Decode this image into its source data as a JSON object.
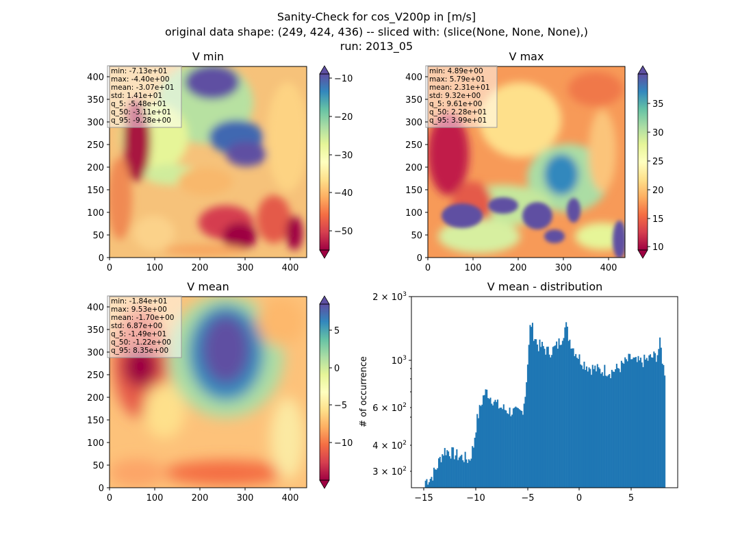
{
  "title_lines": [
    "Sanity-Check for cos_V200p in [m/s]",
    "original data shape: (249, 424, 436) -- sliced with: (slice(None, None, None),)",
    "run: 2013_05"
  ],
  "panels": [
    {
      "title": "V min",
      "stats": [
        "min: -7.13e+01",
        "max: -4.40e+00",
        "mean: -3.07e+01",
        "std: 1.41e+01",
        "q_5: -5.48e+01",
        "q_50: -3.11e+01",
        "q_95: -9.28e+00"
      ],
      "colorbar_ticks": [
        "−10",
        "−20",
        "−30",
        "−40",
        "−50"
      ],
      "colorbar_range": [
        -55,
        -9
      ],
      "extend": "both"
    },
    {
      "title": "V max",
      "stats": [
        "min: 4.89e+00",
        "max: 5.79e+01",
        "mean: 2.31e+01",
        "std: 9.32e+00",
        "q_5: 9.61e+00",
        "q_50: 2.28e+01",
        "q_95: 3.99e+01"
      ],
      "colorbar_ticks": [
        "35",
        "30",
        "25",
        "20",
        "15",
        "10"
      ],
      "colorbar_range": [
        9,
        40
      ],
      "extend": "both"
    },
    {
      "title": "V mean",
      "stats": [
        "min: -1.84e+01",
        "max: 9.53e+00",
        "mean: -1.70e+00",
        "std: 6.87e+00",
        "q_5: -1.49e+01",
        "q_50: -1.22e+00",
        "q_95: 8.35e+00"
      ],
      "colorbar_ticks": [
        "5",
        "0",
        "−5",
        "−10"
      ],
      "colorbar_range": [
        -15,
        8.5
      ],
      "extend": "both"
    }
  ],
  "map_axes": {
    "x_ticks": [
      "0",
      "100",
      "200",
      "300",
      "400"
    ],
    "y_ticks": [
      "0",
      "50",
      "100",
      "150",
      "200",
      "250",
      "300",
      "350",
      "400"
    ],
    "x_range": [
      0,
      436
    ],
    "y_range": [
      0,
      424
    ]
  },
  "colormap": "Spectral",
  "chart_data": [
    {
      "type": "heatmap",
      "title": "V min",
      "x_range": [
        0,
        436
      ],
      "y_range": [
        0,
        424
      ],
      "colorbar_range": [
        -55,
        -9
      ],
      "colormap": "Spectral"
    },
    {
      "type": "heatmap",
      "title": "V max",
      "x_range": [
        0,
        436
      ],
      "y_range": [
        0,
        424
      ],
      "colorbar_range": [
        9,
        40
      ],
      "colormap": "Spectral"
    },
    {
      "type": "heatmap",
      "title": "V mean",
      "x_range": [
        0,
        436
      ],
      "y_range": [
        0,
        424
      ],
      "colorbar_range": [
        -15,
        8.5
      ],
      "colormap": "Spectral"
    },
    {
      "type": "bar",
      "title": "V mean - distribution",
      "ylabel": "# of occurrence",
      "yscale": "log",
      "ylim": [
        270,
        2000
      ],
      "xlim": [
        -16.2,
        9.5
      ],
      "x_ticks": [
        "−15",
        "−10",
        "−5",
        "0",
        "5"
      ],
      "y_tick_labels": {
        "top": "2 × 10",
        "top_exp": "3",
        "mid": "10",
        "mid_exp": "3",
        "l600": "6 × 10",
        "l600_exp": "2",
        "l400": "4 × 10",
        "l400_exp": "2",
        "l300": "3 × 10",
        "l300_exp": "2"
      },
      "bar_color": "#1f77b4",
      "x_start": -14.9,
      "x_end": 8.3,
      "keypoints": [
        [
          -14.9,
          290
        ],
        [
          -14.3,
          300
        ],
        [
          -13.8,
          330
        ],
        [
          -13.4,
          370
        ],
        [
          -13.0,
          400
        ],
        [
          -12.6,
          395
        ],
        [
          -12.1,
          385
        ],
        [
          -11.6,
          375
        ],
        [
          -11.1,
          370
        ],
        [
          -10.6,
          360
        ],
        [
          -10.2,
          420
        ],
        [
          -9.9,
          540
        ],
        [
          -9.5,
          640
        ],
        [
          -9.2,
          720
        ],
        [
          -8.9,
          740
        ],
        [
          -8.6,
          700
        ],
        [
          -8.3,
          680
        ],
        [
          -7.9,
          640
        ],
        [
          -7.4,
          620
        ],
        [
          -7.0,
          610
        ],
        [
          -6.5,
          600
        ],
        [
          -6.0,
          590
        ],
        [
          -5.5,
          600
        ],
        [
          -5.2,
          720
        ],
        [
          -4.9,
          1100
        ],
        [
          -4.7,
          1550
        ],
        [
          -4.4,
          1350
        ],
        [
          -4.0,
          1200
        ],
        [
          -3.5,
          1180
        ],
        [
          -3.0,
          1120
        ],
        [
          -2.5,
          1150
        ],
        [
          -2.1,
          1200
        ],
        [
          -1.7,
          1300
        ],
        [
          -1.3,
          1480
        ],
        [
          -1.0,
          1300
        ],
        [
          -0.6,
          1170
        ],
        [
          -0.3,
          1110
        ],
        [
          0.0,
          1050
        ],
        [
          0.4,
          1000
        ],
        [
          1.0,
          950
        ],
        [
          1.5,
          940
        ],
        [
          2.0,
          920
        ],
        [
          2.5,
          930
        ],
        [
          3.0,
          910
        ],
        [
          3.5,
          930
        ],
        [
          4.0,
          960
        ],
        [
          4.5,
          1010
        ],
        [
          5.0,
          1050
        ],
        [
          5.5,
          1000
        ],
        [
          6.0,
          1010
        ],
        [
          6.5,
          1030
        ],
        [
          7.0,
          1060
        ],
        [
          7.5,
          1080
        ],
        [
          7.8,
          1230
        ],
        [
          8.1,
          960
        ],
        [
          8.3,
          900
        ]
      ],
      "n_bins": 200
    }
  ]
}
